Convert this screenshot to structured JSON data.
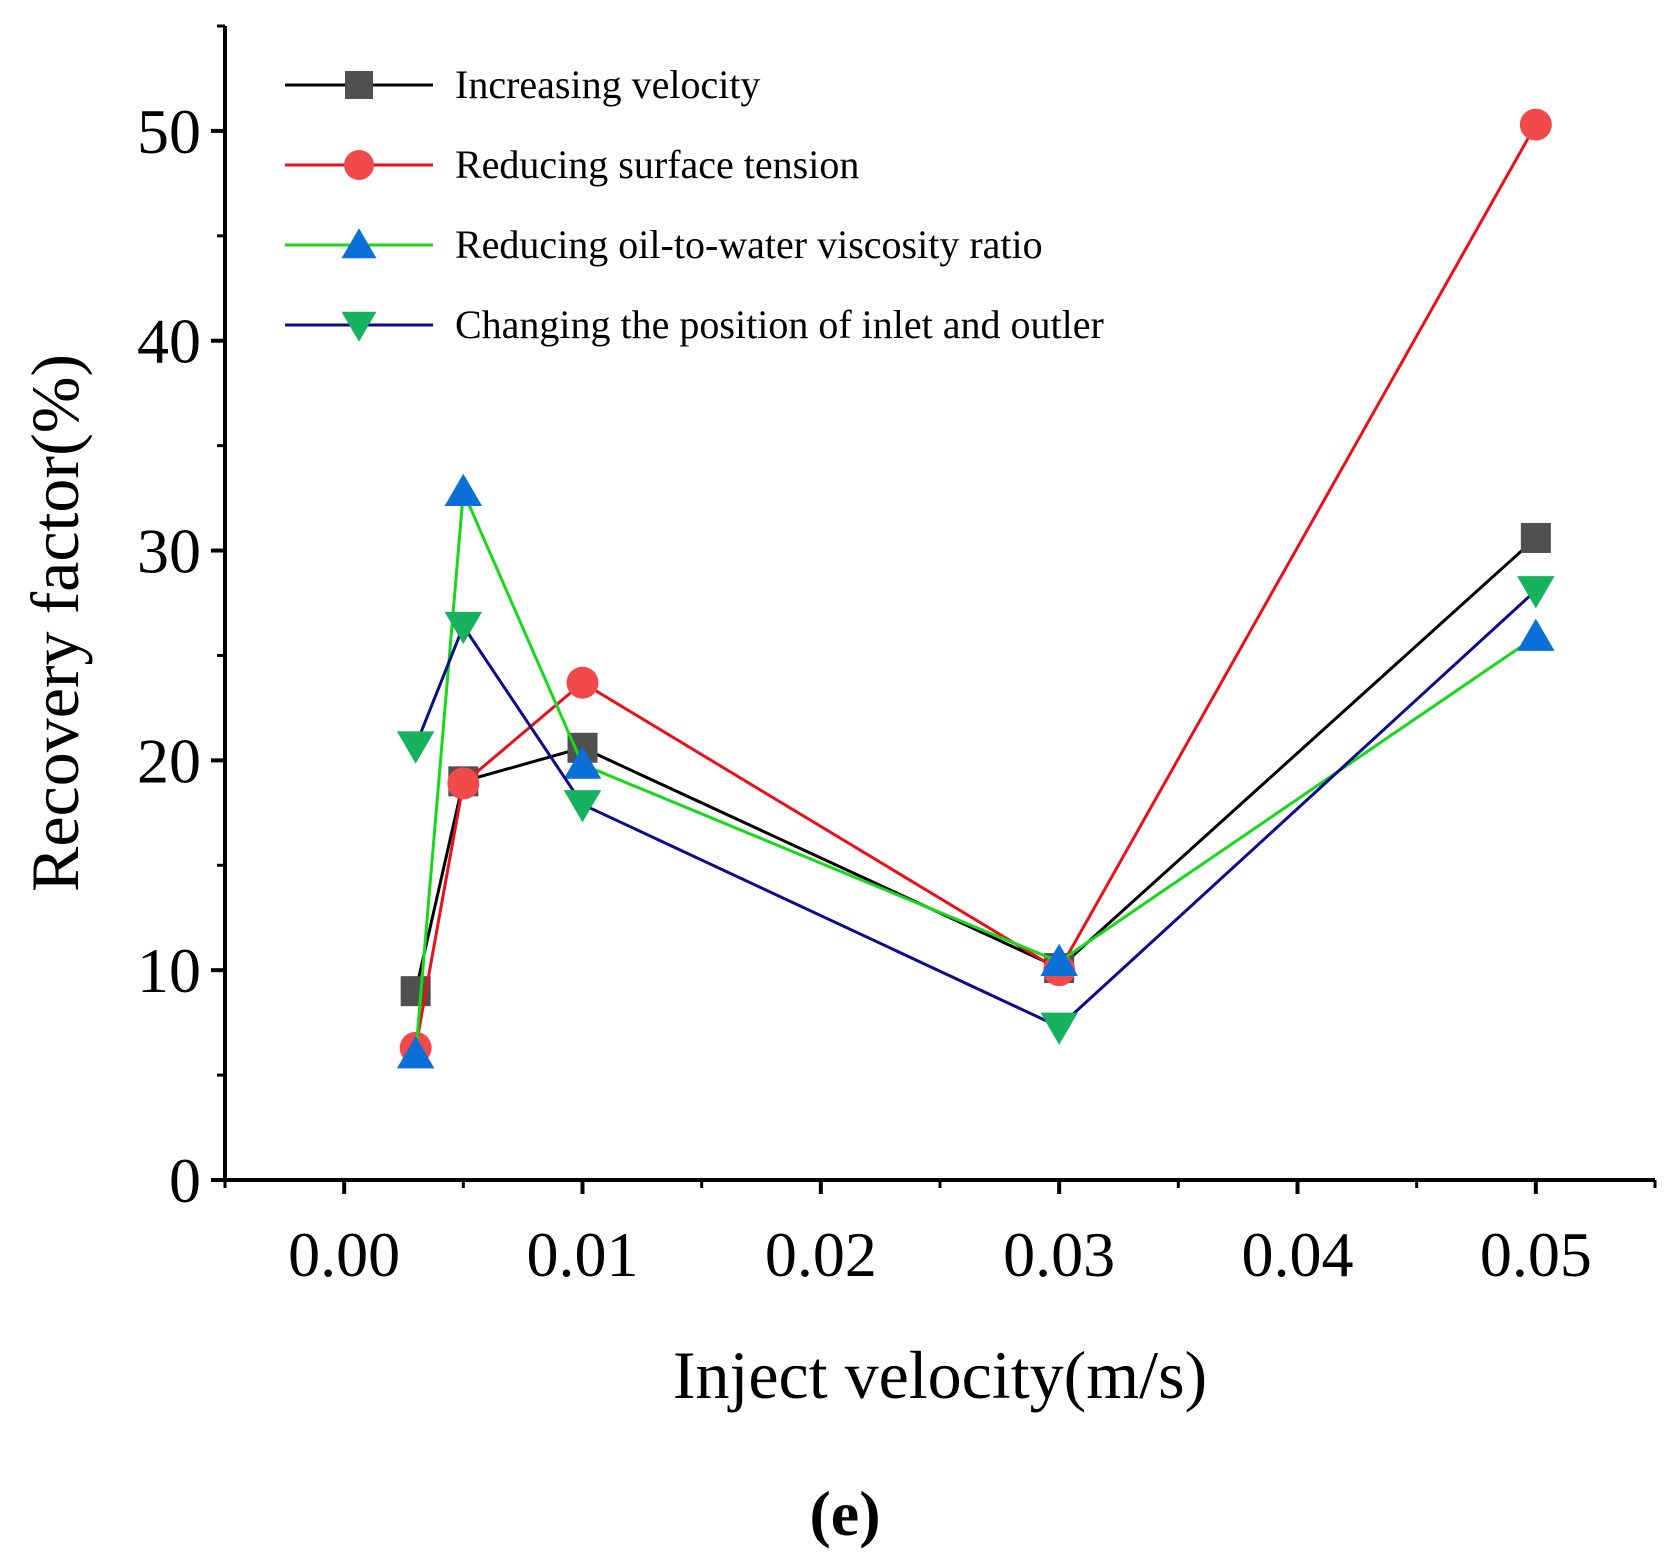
{
  "chart_data": {
    "type": "line",
    "title": "",
    "xlabel": "Inject velocity(m/s)",
    "ylabel": "Recovery factor(%)",
    "xlim": [
      -0.005,
      0.055
    ],
    "ylim": [
      0,
      55
    ],
    "x_ticks": [
      0.0,
      0.01,
      0.02,
      0.03,
      0.04,
      0.05
    ],
    "x_tick_labels": [
      "0.00",
      "0.01",
      "0.02",
      "0.03",
      "0.04",
      "0.05"
    ],
    "y_ticks": [
      0,
      10,
      20,
      30,
      40,
      50
    ],
    "y_tick_labels": [
      "0",
      "10",
      "20",
      "30",
      "40",
      "50"
    ],
    "grid": false,
    "legend_position": "top-left",
    "x": [
      0.003,
      0.005,
      0.01,
      0.03,
      0.05
    ],
    "series": [
      {
        "name": "Increasing velocity",
        "values": [
          9.0,
          19.0,
          20.6,
          10.1,
          30.6
        ],
        "line_color": "#000000",
        "marker_color": "#505050",
        "marker": "square"
      },
      {
        "name": "Reducing surface tension",
        "values": [
          6.3,
          18.9,
          23.7,
          10.0,
          50.3
        ],
        "line_color": "#e8101a",
        "marker_color": "#f24a4a",
        "marker": "circle"
      },
      {
        "name": "Reducing oil-to-water viscosity ratio",
        "values": [
          6.0,
          32.8,
          19.8,
          10.4,
          25.9
        ],
        "line_color": "#17d81a",
        "marker_color": "#0a6fd6",
        "marker": "triangle-up"
      },
      {
        "name": "Changing the position of inlet and outler",
        "values": [
          20.7,
          26.4,
          17.9,
          7.3,
          28.1
        ],
        "line_color": "#0d0d8a",
        "marker_color": "#16b25e",
        "marker": "triangle-down"
      }
    ],
    "panel_label": "(e)"
  }
}
